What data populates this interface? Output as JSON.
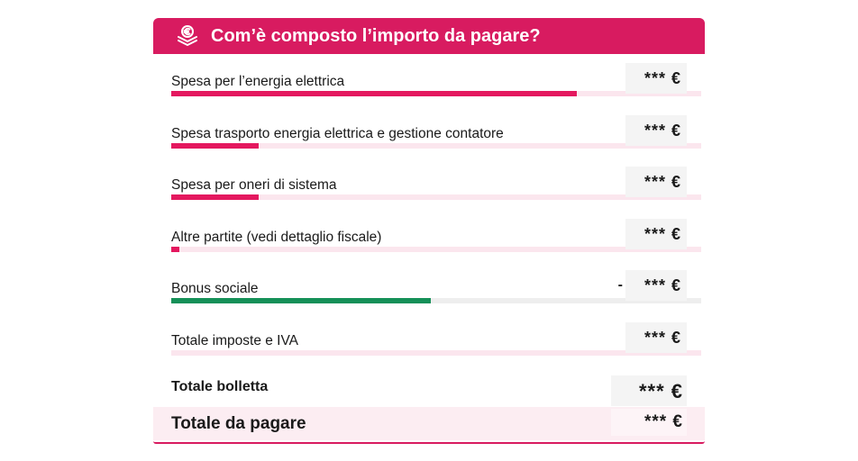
{
  "header": {
    "title": "Com’è composto l’importo da pagare?",
    "icon": "euro-stack-icon"
  },
  "rows": [
    {
      "label": "Spesa per l’energia elettrica",
      "amount": "*** €",
      "prefix": "",
      "bar_fraction": 0.765,
      "bar_color": "#e4185f"
    },
    {
      "label": "Spesa trasporto energia elettrica e gestione contatore",
      "amount": "*** €",
      "prefix": "",
      "bar_fraction": 0.165,
      "bar_color": "#e4185f"
    },
    {
      "label": "Spesa per oneri di sistema",
      "amount": "*** €",
      "prefix": "",
      "bar_fraction": 0.165,
      "bar_color": "#e4185f"
    },
    {
      "label": "Altre partite (vedi dettaglio fiscale)",
      "amount": "*** €",
      "prefix": "",
      "bar_fraction": 0.015,
      "bar_color": "#e4185f"
    },
    {
      "label": "Bonus sociale",
      "amount": "*** €",
      "prefix": "-",
      "bar_fraction": 0.49,
      "bar_color": "#159058"
    },
    {
      "label": "Totale imposte e IVA",
      "amount": "*** €",
      "prefix": "",
      "bar_fraction": 0.0,
      "bar_color": "#e4185f"
    }
  ],
  "totale_bolletta": {
    "label": "Totale bolletta",
    "amount": "*** €"
  },
  "totale_da_pagare": {
    "label": "Totale da pagare",
    "amount": "*** €"
  },
  "colors": {
    "accent": "#d81b60",
    "bar_pink": "#e4185f",
    "bar_green": "#159058",
    "track": "#fbe6ee"
  }
}
